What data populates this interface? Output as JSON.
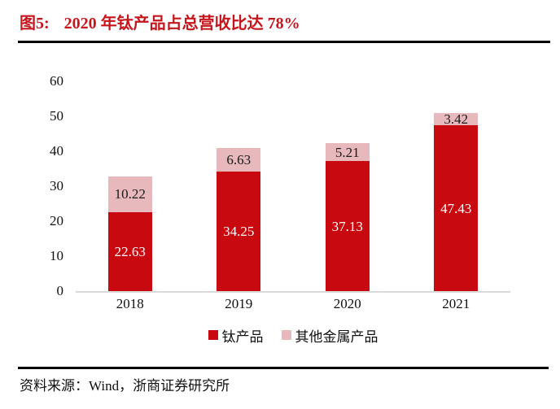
{
  "figure": {
    "label": "图5:",
    "title": "2020 年钛产品占总营收比达 78%",
    "source_note": "资料来源：Wind，浙商证券研究所"
  },
  "colors": {
    "title_red": "#c5161d",
    "bar_red": "#c8090f",
    "bar_pink": "#e7b9bc",
    "axis_line": "#d9d9d9",
    "rule_black": "#000000",
    "label_on_red": "#ffffff",
    "label_on_pink": "#1a1a1a"
  },
  "chart_data": {
    "type": "bar",
    "stacked": true,
    "title": "2020 年钛产品占总营收比达 78%",
    "categories": [
      "2018",
      "2019",
      "2020",
      "2021"
    ],
    "series": [
      {
        "name": "钛产品",
        "color": "#c8090f",
        "label_color": "#ffffff",
        "values": [
          22.63,
          34.25,
          37.13,
          47.43
        ]
      },
      {
        "name": "其他金属产品",
        "color": "#e7b9bc",
        "label_color": "#1a1a1a",
        "values": [
          10.22,
          6.63,
          5.21,
          3.42
        ]
      }
    ],
    "xlabel": "",
    "ylabel": "",
    "ylim": [
      0,
      60
    ],
    "yticks": [
      0,
      10,
      20,
      30,
      40,
      50,
      60
    ],
    "grid": false,
    "legend_position": "bottom",
    "data_labels": true
  }
}
